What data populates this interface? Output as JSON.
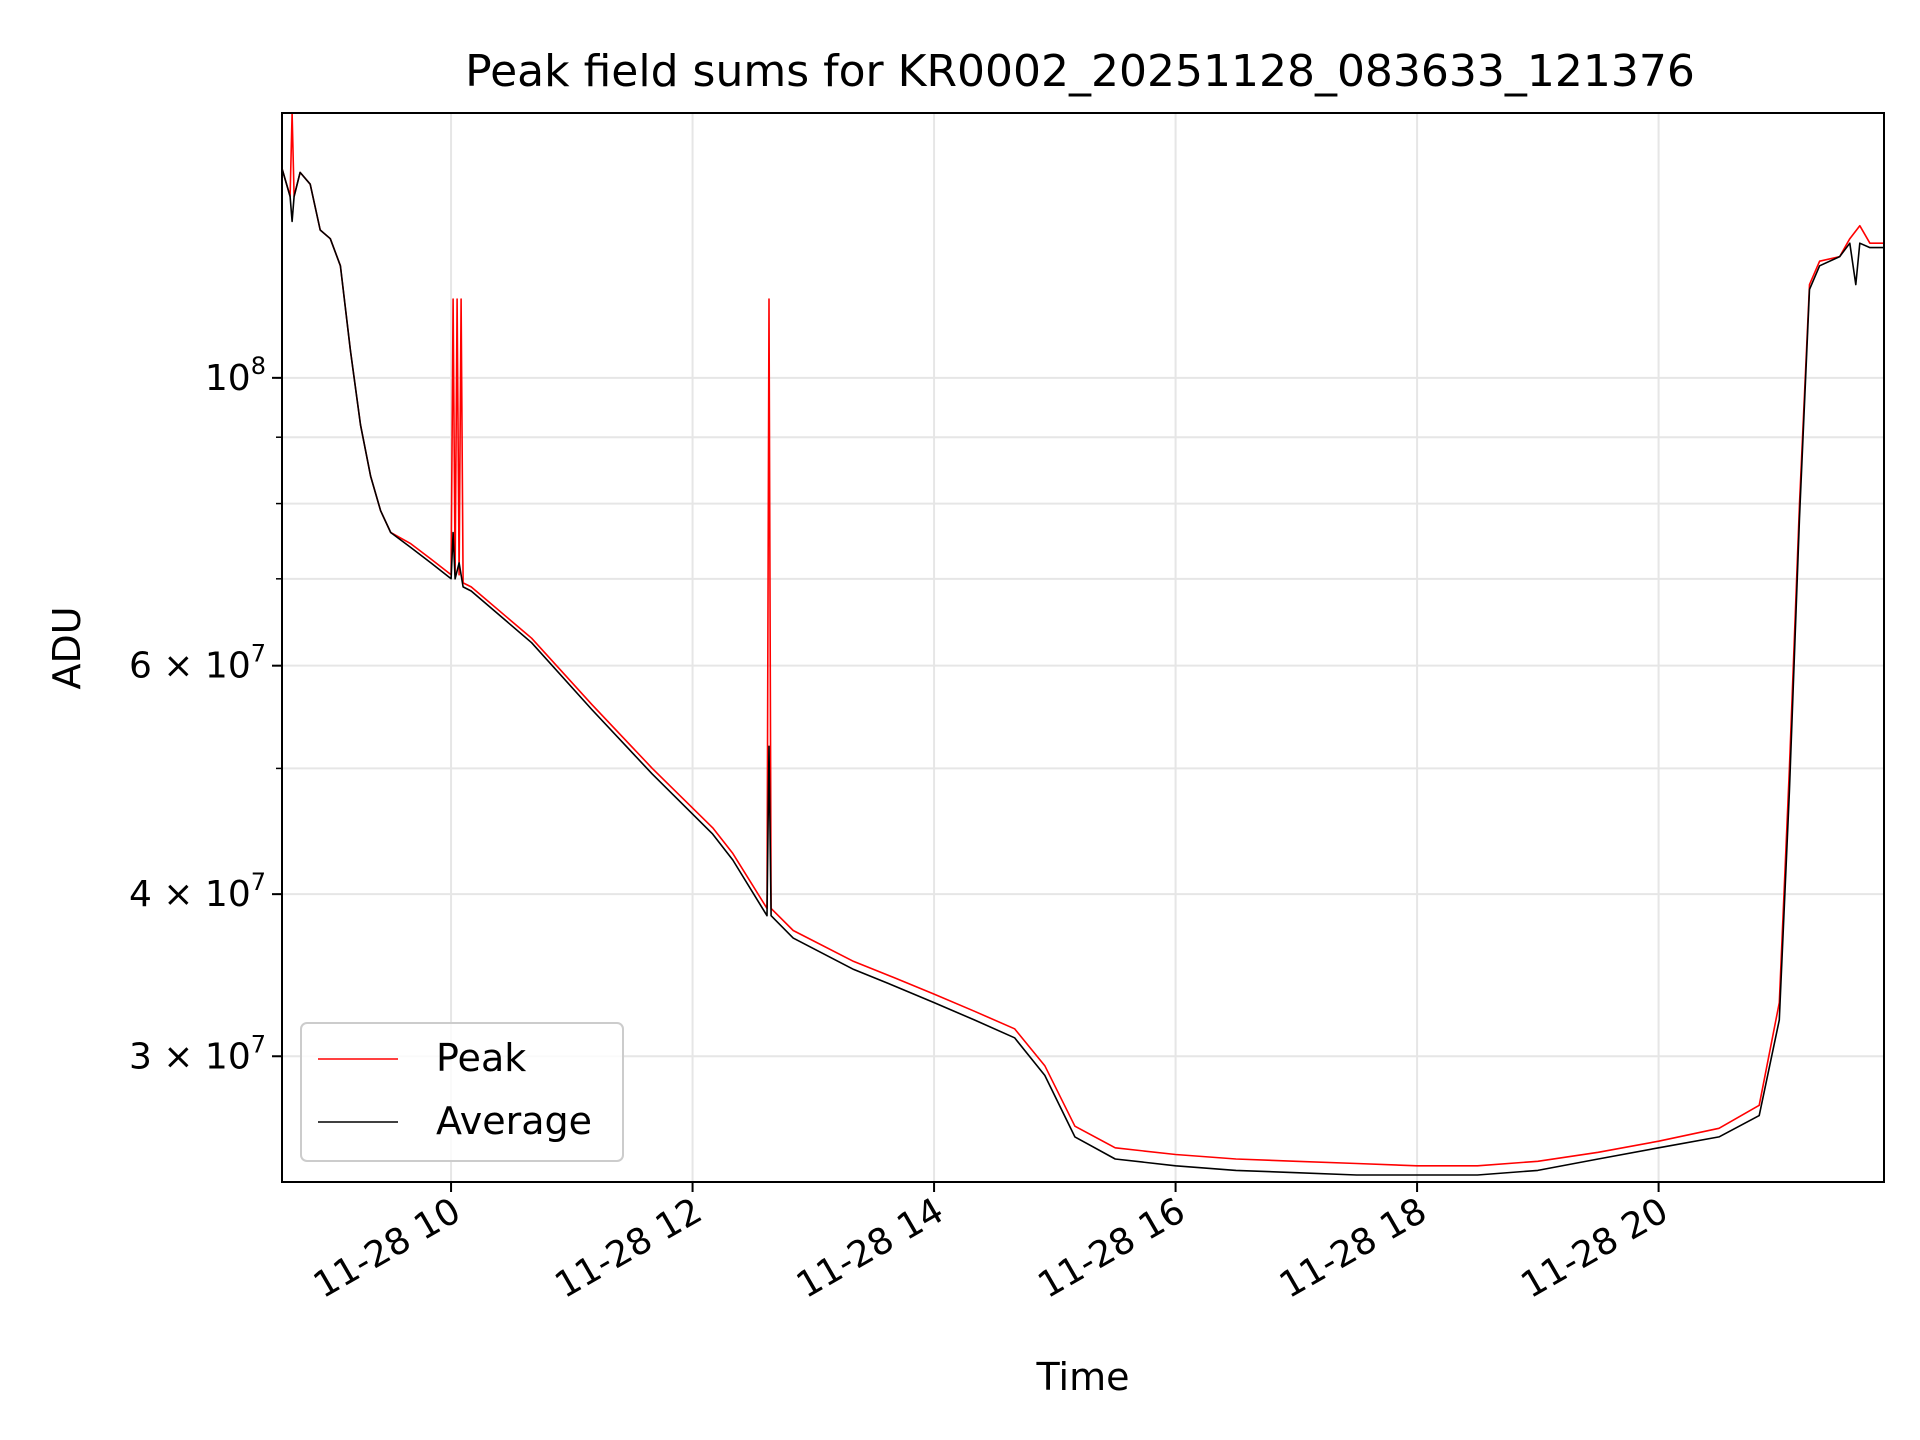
{
  "chart_data": {
    "type": "line",
    "title": "Peak field sums for KR0002_20251128_083633_121376",
    "xlabel": "Time",
    "ylabel": "ADU",
    "y_scale": "log",
    "xlim": [
      "2025-11-28 08:36",
      "2025-11-28 21:52"
    ],
    "ylim": [
      24000000,
      160000000
    ],
    "grid": true,
    "legend_position": "lower-left",
    "x_ticks": [
      "2025-11-28 10:00",
      "2025-11-28 12:00",
      "2025-11-28 14:00",
      "2025-11-28 16:00",
      "2025-11-28 18:00",
      "2025-11-28 20:00"
    ],
    "x_tick_labels": [
      "11-28 10",
      "11-28 12",
      "11-28 14",
      "11-28 16",
      "11-28 18",
      "11-28 20"
    ],
    "y_ticks": [
      {
        "value": 30000000,
        "mantissa": "3",
        "times": "×",
        "base": "10",
        "exp": "7"
      },
      {
        "value": 40000000,
        "mantissa": "4",
        "times": "×",
        "base": "10",
        "exp": "7"
      },
      {
        "value": 60000000,
        "mantissa": "6",
        "times": "×",
        "base": "10",
        "exp": "7"
      },
      {
        "value": 100000000,
        "mantissa": "",
        "times": "",
        "base": "10",
        "exp": "8"
      }
    ],
    "series": [
      {
        "name": "Peak",
        "color": "#ff0000",
        "x": [
          "2025-11-28 08:36",
          "2025-11-28 08:40",
          "2025-11-28 08:41",
          "2025-11-28 08:42",
          "2025-11-28 08:45",
          "2025-11-28 08:50",
          "2025-11-28 08:55",
          "2025-11-28 09:00",
          "2025-11-28 09:05",
          "2025-11-28 09:10",
          "2025-11-28 09:15",
          "2025-11-28 09:20",
          "2025-11-28 09:25",
          "2025-11-28 09:30",
          "2025-11-28 09:40",
          "2025-11-28 09:50",
          "2025-11-28 10:00",
          "2025-11-28 10:01",
          "2025-11-28 10:02",
          "2025-11-28 10:03",
          "2025-11-28 10:04",
          "2025-11-28 10:05",
          "2025-11-28 10:06",
          "2025-11-28 10:10",
          "2025-11-28 10:40",
          "2025-11-28 11:10",
          "2025-11-28 11:40",
          "2025-11-28 12:10",
          "2025-11-28 12:20",
          "2025-11-28 12:37",
          "2025-11-28 12:38",
          "2025-11-28 12:39",
          "2025-11-28 12:50",
          "2025-11-28 13:20",
          "2025-11-28 13:40",
          "2025-11-28 14:00",
          "2025-11-28 14:20",
          "2025-11-28 14:40",
          "2025-11-28 14:55",
          "2025-11-28 15:10",
          "2025-11-28 15:30",
          "2025-11-28 16:00",
          "2025-11-28 16:30",
          "2025-11-28 17:00",
          "2025-11-28 17:30",
          "2025-11-28 18:00",
          "2025-11-28 18:30",
          "2025-11-28 19:00",
          "2025-11-28 19:30",
          "2025-11-28 20:00",
          "2025-11-28 20:30",
          "2025-11-28 20:50",
          "2025-11-28 21:00",
          "2025-11-28 21:05",
          "2025-11-28 21:10",
          "2025-11-28 21:15",
          "2025-11-28 21:20",
          "2025-11-28 21:30",
          "2025-11-28 21:35",
          "2025-11-28 21:40",
          "2025-11-28 21:45",
          "2025-11-28 21:52"
        ],
        "y": [
          145000000,
          138000000,
          160000000,
          138000000,
          144000000,
          141000000,
          130000000,
          128000000,
          122000000,
          105000000,
          92000000,
          84000000,
          79000000,
          76000000,
          74500000,
          72500000,
          70500000,
          115000000,
          70500000,
          115000000,
          70500000,
          115000000,
          69500000,
          69000000,
          63000000,
          56000000,
          50000000,
          45000000,
          43000000,
          39000000,
          115000000,
          39000000,
          37500000,
          35500000,
          34500000,
          33500000,
          32500000,
          31500000,
          29500000,
          26500000,
          25500000,
          25200000,
          25000000,
          24900000,
          24800000,
          24700000,
          24700000,
          24900000,
          25300000,
          25800000,
          26400000,
          27500000,
          33000000,
          50000000,
          80000000,
          118000000,
          123000000,
          124000000,
          128000000,
          131000000,
          127000000,
          127000000
        ]
      },
      {
        "name": "Average",
        "color": "#000000",
        "x": [
          "2025-11-28 08:36",
          "2025-11-28 08:40",
          "2025-11-28 08:41",
          "2025-11-28 08:42",
          "2025-11-28 08:45",
          "2025-11-28 08:50",
          "2025-11-28 08:55",
          "2025-11-28 09:00",
          "2025-11-28 09:05",
          "2025-11-28 09:10",
          "2025-11-28 09:15",
          "2025-11-28 09:20",
          "2025-11-28 09:25",
          "2025-11-28 09:30",
          "2025-11-28 09:40",
          "2025-11-28 09:50",
          "2025-11-28 10:00",
          "2025-11-28 10:01",
          "2025-11-28 10:02",
          "2025-11-28 10:04",
          "2025-11-28 10:06",
          "2025-11-28 10:10",
          "2025-11-28 10:40",
          "2025-11-28 11:10",
          "2025-11-28 11:40",
          "2025-11-28 12:10",
          "2025-11-28 12:20",
          "2025-11-28 12:37",
          "2025-11-28 12:38",
          "2025-11-28 12:39",
          "2025-11-28 12:50",
          "2025-11-28 13:20",
          "2025-11-28 13:40",
          "2025-11-28 14:00",
          "2025-11-28 14:20",
          "2025-11-28 14:40",
          "2025-11-28 14:55",
          "2025-11-28 15:10",
          "2025-11-28 15:30",
          "2025-11-28 16:00",
          "2025-11-28 16:30",
          "2025-11-28 17:00",
          "2025-11-28 17:30",
          "2025-11-28 18:00",
          "2025-11-28 18:30",
          "2025-11-28 19:00",
          "2025-11-28 19:30",
          "2025-11-28 20:00",
          "2025-11-28 20:30",
          "2025-11-28 20:50",
          "2025-11-28 21:00",
          "2025-11-28 21:05",
          "2025-11-28 21:10",
          "2025-11-28 21:15",
          "2025-11-28 21:20",
          "2025-11-28 21:30",
          "2025-11-28 21:35",
          "2025-11-28 21:38",
          "2025-11-28 21:40",
          "2025-11-28 21:45",
          "2025-11-28 21:52"
        ],
        "y": [
          145000000,
          138000000,
          132000000,
          138000000,
          144000000,
          141000000,
          130000000,
          128000000,
          122000000,
          105000000,
          92000000,
          84000000,
          79000000,
          76000000,
          74000000,
          72000000,
          70000000,
          76000000,
          70000000,
          72000000,
          69000000,
          68500000,
          62500000,
          55500000,
          49500000,
          44500000,
          42500000,
          38500000,
          52000000,
          38500000,
          37000000,
          35000000,
          34000000,
          33000000,
          32000000,
          31000000,
          29000000,
          26000000,
          25000000,
          24700000,
          24500000,
          24400000,
          24300000,
          24300000,
          24300000,
          24500000,
          25000000,
          25500000,
          26000000,
          27000000,
          32000000,
          48000000,
          78000000,
          117000000,
          122000000,
          124000000,
          127000000,
          118000000,
          127000000,
          126000000,
          126000000
        ]
      }
    ]
  }
}
